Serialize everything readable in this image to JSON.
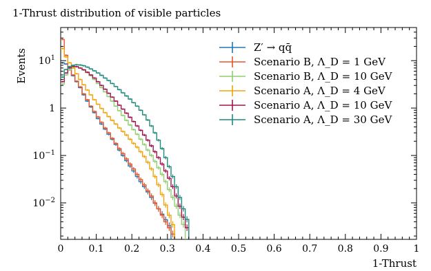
{
  "chart_data": {
    "type": "line",
    "title": "1-Thrust distribution of visible particles",
    "xlabel": "1-Thrust",
    "ylabel": "Events",
    "xlim": [
      0,
      1
    ],
    "ylim": [
      0.0017,
      50
    ],
    "yscale": "log",
    "grid": false,
    "legend_position": "top-right",
    "x_ticks": [
      "0",
      "0.1",
      "0.2",
      "0.3",
      "0.4",
      "0.5",
      "0.6",
      "0.7",
      "0.8",
      "0.9",
      "1"
    ],
    "y_ticks": [
      {
        "base": "10",
        "exp": "−2",
        "value": 0.01
      },
      {
        "base": "10",
        "exp": "−1",
        "value": 0.1
      },
      {
        "base": "1",
        "exp": "",
        "value": 1
      },
      {
        "base": "10",
        "exp": "1",
        "value": 10
      }
    ],
    "bin_width": 0.01,
    "series": [
      {
        "name": "Z′ → qq̄",
        "color": "#1f77b4",
        "values": [
          9,
          8.5,
          6.4,
          4.8,
          3.6,
          2.7,
          1.9,
          1.4,
          1.05,
          0.8,
          0.6,
          0.46,
          0.36,
          0.28,
          0.22,
          0.17,
          0.13,
          0.1,
          0.078,
          0.06,
          0.047,
          0.036,
          0.028,
          0.022,
          0.017,
          0.013,
          0.0098,
          0.0075,
          0.0058,
          0.0044,
          0.0033
        ]
      },
      {
        "name": "Scenario B, Λ_D = 1 GeV",
        "color": "#e6552b",
        "values": [
          28,
          13,
          7.2,
          5.0,
          3.7,
          2.8,
          2.0,
          1.5,
          1.1,
          0.85,
          0.65,
          0.5,
          0.38,
          0.3,
          0.23,
          0.18,
          0.14,
          0.11,
          0.085,
          0.066,
          0.052,
          0.04,
          0.031,
          0.024,
          0.018,
          0.014,
          0.01,
          0.0075,
          0.0055,
          0.004,
          0.003,
          0.0022
        ]
      },
      {
        "name": "Scenario B, Λ_D = 10 GeV",
        "color": "#8fce6e",
        "values": [
          3.2,
          5.0,
          6.4,
          7.2,
          7.4,
          7.0,
          6.4,
          5.6,
          4.8,
          4.0,
          3.3,
          2.7,
          2.2,
          1.75,
          1.4,
          1.1,
          0.88,
          0.7,
          0.55,
          0.44,
          0.35,
          0.28,
          0.22,
          0.17,
          0.13,
          0.1,
          0.075,
          0.055,
          0.04,
          0.028,
          0.019,
          0.013,
          0.0085,
          0.0055,
          0.0035
        ]
      },
      {
        "name": "Scenario A, Λ_D = 4 GeV",
        "color": "#f0a30a",
        "values": [
          18,
          12,
          9.0,
          7.0,
          5.3,
          4.0,
          3.1,
          2.4,
          1.9,
          1.5,
          1.2,
          0.98,
          0.8,
          0.66,
          0.55,
          0.46,
          0.38,
          0.32,
          0.27,
          0.22,
          0.18,
          0.15,
          0.12,
          0.095,
          0.072,
          0.052,
          0.036,
          0.024,
          0.015,
          0.009,
          0.0055,
          0.0035
        ]
      },
      {
        "name": "Scenario A, Λ_D = 10 GeV",
        "color": "#a0144c",
        "values": [
          3.6,
          5.5,
          7.0,
          7.6,
          7.5,
          7.0,
          6.4,
          5.7,
          5.0,
          4.3,
          3.6,
          3.0,
          2.5,
          2.05,
          1.7,
          1.4,
          1.15,
          0.95,
          0.78,
          0.64,
          0.52,
          0.42,
          0.34,
          0.27,
          0.21,
          0.16,
          0.12,
          0.09,
          0.066,
          0.047,
          0.033,
          0.022,
          0.014,
          0.0085,
          0.005,
          0.003
        ]
      },
      {
        "name": "Scenario A, Λ_D = 30 GeV",
        "color": "#1e8a7a",
        "values": [
          4.5,
          6.5,
          7.5,
          8.0,
          8.2,
          8.1,
          7.8,
          7.3,
          6.7,
          6.1,
          5.5,
          4.9,
          4.3,
          3.8,
          3.3,
          2.85,
          2.45,
          2.1,
          1.8,
          1.55,
          1.3,
          1.1,
          0.9,
          0.72,
          0.56,
          0.42,
          0.3,
          0.21,
          0.14,
          0.09,
          0.058,
          0.036,
          0.022,
          0.013,
          0.0075,
          0.0045
        ]
      }
    ]
  }
}
